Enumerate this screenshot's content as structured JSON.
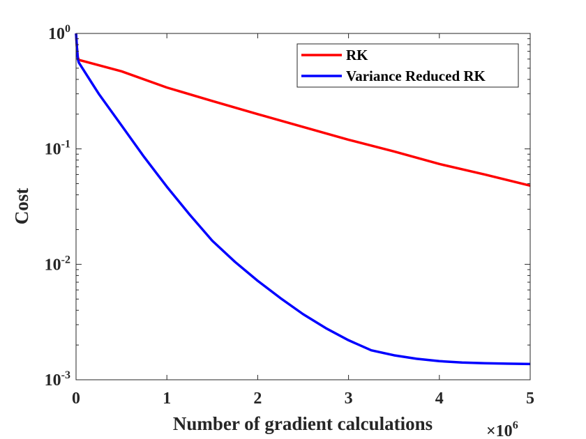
{
  "chart_data": {
    "type": "line",
    "title": "",
    "xlabel": "Number of gradient calculations",
    "ylabel": "Cost",
    "x_multiplier_label": "×10",
    "x_multiplier_exponent": "6",
    "xlim": [
      0,
      5
    ],
    "ylim": [
      0.001,
      1
    ],
    "yscale": "log",
    "grid": false,
    "legend_position": "top-right",
    "x_ticks": [
      {
        "value": 0,
        "label": "0"
      },
      {
        "value": 1,
        "label": "1"
      },
      {
        "value": 2,
        "label": "2"
      },
      {
        "value": 3,
        "label": "3"
      },
      {
        "value": 4,
        "label": "4"
      },
      {
        "value": 5,
        "label": "5"
      }
    ],
    "y_ticks": [
      {
        "value": 1,
        "base": "10",
        "exp": "0"
      },
      {
        "value": 0.1,
        "base": "10",
        "exp": "-1"
      },
      {
        "value": 0.01,
        "base": "10",
        "exp": "-2"
      },
      {
        "value": 0.001,
        "base": "10",
        "exp": "-3"
      }
    ],
    "series": [
      {
        "name": "RK",
        "color": "#ff0000",
        "x": [
          0,
          0.01,
          0.02,
          0.03,
          0.5,
          1,
          1.5,
          2,
          2.5,
          3,
          3.5,
          4,
          4.5,
          5
        ],
        "y": [
          1.0,
          0.75,
          0.62,
          0.59,
          0.47,
          0.34,
          0.26,
          0.2,
          0.155,
          0.12,
          0.095,
          0.074,
          0.06,
          0.048
        ]
      },
      {
        "name": "Variance Reduced RK",
        "color": "#0000ff",
        "x": [
          0,
          0.01,
          0.02,
          0.03,
          0.25,
          0.5,
          0.75,
          1,
          1.25,
          1.5,
          1.75,
          2,
          2.25,
          2.5,
          2.75,
          3,
          3.25,
          3.5,
          3.75,
          4,
          4.25,
          4.5,
          4.75,
          5
        ],
        "y": [
          1.0,
          0.75,
          0.6,
          0.56,
          0.3,
          0.16,
          0.085,
          0.047,
          0.027,
          0.016,
          0.0105,
          0.0072,
          0.0051,
          0.0037,
          0.0028,
          0.0022,
          0.0018,
          0.00163,
          0.00152,
          0.00145,
          0.00141,
          0.00139,
          0.00138,
          0.00137
        ]
      }
    ]
  }
}
